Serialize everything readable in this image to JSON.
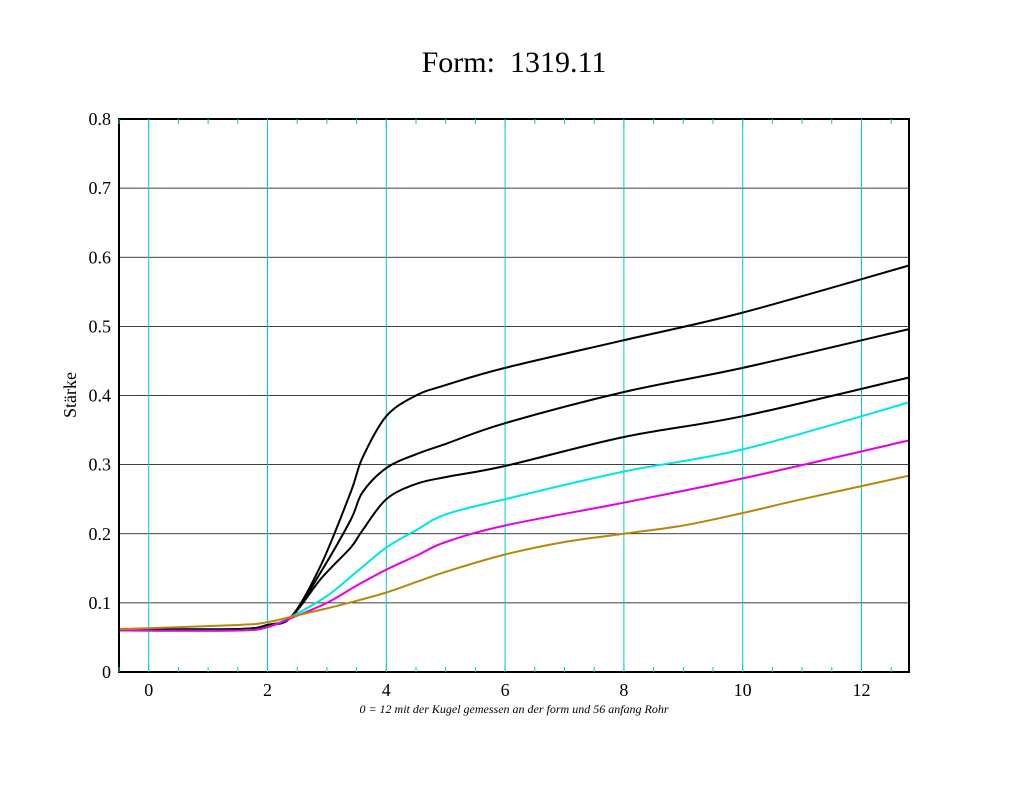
{
  "chart_data": {
    "type": "line",
    "title": "Form:  1319.11",
    "xlabel": "0 = 12 mit der Kugel gemessen an der form und 56 anfang Rohr",
    "ylabel": "Stärke",
    "xlim": [
      -0.5,
      12.8
    ],
    "ylim": [
      0,
      0.8
    ],
    "x_ticks": [
      0,
      2,
      4,
      6,
      8,
      10,
      12
    ],
    "y_ticks": [
      0,
      0.1,
      0.2,
      0.3,
      0.4,
      0.5,
      0.6,
      0.7,
      0.8
    ],
    "y_tick_labels": [
      "0",
      "0.1",
      "0.2",
      "0.3",
      "0.4",
      "0.5",
      "0.6",
      "0.7",
      "0.8"
    ],
    "x_gridlines": [
      0,
      2,
      4,
      6,
      8,
      10,
      12
    ],
    "grid": true,
    "legend": "none",
    "series": [
      {
        "color": "#000000",
        "x": [
          -0.5,
          1.5,
          2.0,
          2.4,
          2.9,
          3.4,
          3.6,
          4.0,
          4.5,
          5.0,
          6.0,
          8.0,
          10.0,
          12.8
        ],
        "y": [
          0.062,
          0.062,
          0.068,
          0.08,
          0.155,
          0.26,
          0.31,
          0.37,
          0.4,
          0.415,
          0.44,
          0.48,
          0.52,
          0.588
        ]
      },
      {
        "color": "#000000",
        "x": [
          -0.5,
          1.5,
          2.0,
          2.4,
          2.9,
          3.4,
          3.6,
          4.0,
          4.5,
          5.0,
          6.0,
          8.0,
          10.0,
          12.8
        ],
        "y": [
          0.062,
          0.062,
          0.068,
          0.08,
          0.145,
          0.22,
          0.26,
          0.295,
          0.315,
          0.33,
          0.36,
          0.405,
          0.44,
          0.496
        ]
      },
      {
        "color": "#000000",
        "x": [
          -0.5,
          1.5,
          2.0,
          2.4,
          2.9,
          3.4,
          3.6,
          4.0,
          4.5,
          5.0,
          6.0,
          8.0,
          10.0,
          12.8
        ],
        "y": [
          0.062,
          0.062,
          0.068,
          0.08,
          0.135,
          0.18,
          0.205,
          0.25,
          0.272,
          0.282,
          0.298,
          0.34,
          0.37,
          0.426
        ]
      },
      {
        "color": "#00e5e5",
        "x": [
          -0.5,
          1.5,
          2.0,
          2.4,
          3.0,
          3.5,
          4.0,
          4.5,
          5.0,
          6.0,
          8.0,
          10.0,
          12.8
        ],
        "y": [
          0.06,
          0.06,
          0.065,
          0.08,
          0.11,
          0.145,
          0.18,
          0.205,
          0.228,
          0.25,
          0.29,
          0.322,
          0.39
        ]
      },
      {
        "color": "#e600e6",
        "x": [
          -0.5,
          1.5,
          2.0,
          2.4,
          3.0,
          3.5,
          4.0,
          4.5,
          5.0,
          6.0,
          8.0,
          10.0,
          12.8
        ],
        "y": [
          0.06,
          0.06,
          0.065,
          0.078,
          0.1,
          0.125,
          0.148,
          0.168,
          0.188,
          0.212,
          0.245,
          0.28,
          0.335
        ]
      },
      {
        "color": "#b8860b",
        "x": [
          -0.5,
          1.5,
          2.0,
          2.5,
          3.0,
          3.5,
          4.0,
          4.5,
          5.0,
          6.0,
          7.0,
          8.0,
          9.0,
          10.0,
          11.0,
          12.8
        ],
        "y": [
          0.062,
          0.068,
          0.072,
          0.082,
          0.092,
          0.103,
          0.115,
          0.13,
          0.145,
          0.17,
          0.188,
          0.2,
          0.212,
          0.23,
          0.25,
          0.284
        ]
      }
    ]
  }
}
